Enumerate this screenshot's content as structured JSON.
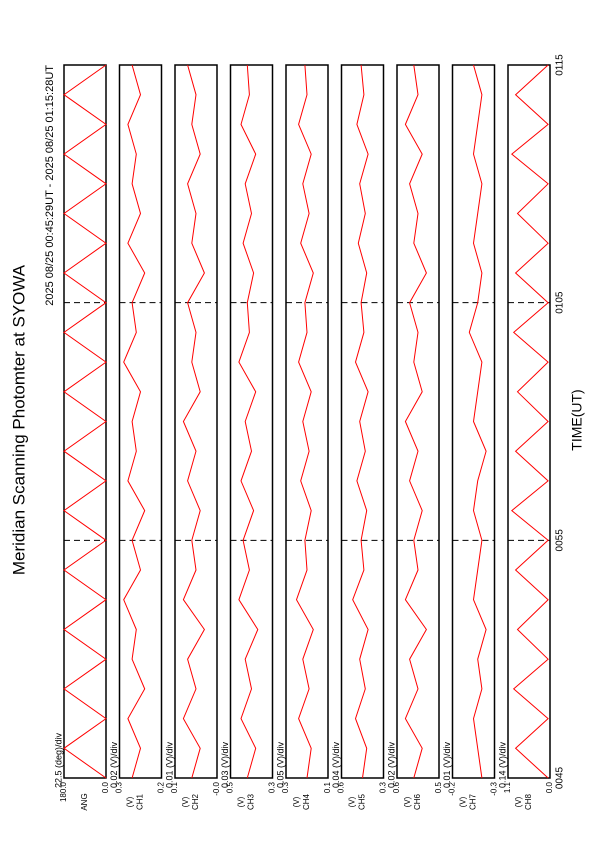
{
  "chart_data": {
    "type": "line",
    "title": "Meridian Scanning Photomter at SYOWA",
    "subtitle": "2025 08/25 00:45:29UT - 2025 08/25 01:15:28UT",
    "x_label": "TIME(UT)",
    "xlim": [
      0,
      30
    ],
    "xticks": [
      {
        "value": 0,
        "label": "0045"
      },
      {
        "value": 10,
        "label": "0055"
      },
      {
        "value": 20,
        "label": "0105"
      },
      {
        "value": 30,
        "label": "0115"
      }
    ],
    "x": [
      0,
      1.25,
      2.5,
      3.75,
      5,
      6.25,
      7.5,
      8.75,
      10,
      11.25,
      12.5,
      13.75,
      15,
      16.25,
      17.5,
      18.75,
      20,
      21.25,
      22.5,
      23.75,
      25,
      26.25,
      27.5,
      28.75,
      30
    ],
    "series": [
      {
        "name": "ANG",
        "scale": "22.5 (deg)/div",
        "color": "#ff0000",
        "ylim": [
          0,
          180
        ],
        "yticks": [
          {
            "value": 0,
            "label": "0.0"
          },
          {
            "value": 180,
            "label": "180.0"
          }
        ],
        "values": [
          0,
          180,
          0,
          180,
          0,
          180,
          0,
          180,
          0,
          180,
          0,
          180,
          0,
          180,
          0,
          180,
          0,
          180,
          0,
          180,
          0,
          180,
          0,
          180,
          0
        ]
      },
      {
        "name": "CH1",
        "unit": "(V)",
        "scale": "0.02 (V)/div",
        "color": "#ff0000",
        "ylim": [
          0.2,
          0.3
        ],
        "yticks": [
          0.2,
          0.3
        ],
        "values": [
          0.27,
          0.25,
          0.28,
          0.24,
          0.27,
          0.26,
          0.29,
          0.25,
          0.27,
          0.24,
          0.28,
          0.26,
          0.27,
          0.25,
          0.29,
          0.26,
          0.27,
          0.24,
          0.28,
          0.25,
          0.27,
          0.26,
          0.28,
          0.25,
          0.27
        ]
      },
      {
        "name": "CH2",
        "unit": "(V)",
        "scale": "0.01 (V)/div",
        "color": "#ff0000",
        "ylim": [
          0,
          0.1
        ],
        "yticks": [
          {
            "value": 0,
            "label": "-0.0"
          },
          0.1
        ],
        "values": [
          0.06,
          0.04,
          0.08,
          0.05,
          0.07,
          0.03,
          0.08,
          0.05,
          0.06,
          0.04,
          0.07,
          0.05,
          0.08,
          0.04,
          0.06,
          0.05,
          0.07,
          0.03,
          0.06,
          0.05,
          0.07,
          0.04,
          0.06,
          0.05,
          0.07
        ]
      },
      {
        "name": "CH3",
        "unit": "(V)",
        "scale": "0.03 (V)/div",
        "color": "#ff0000",
        "ylim": [
          0.3,
          0.5
        ],
        "yticks": [
          0.3,
          0.5
        ],
        "values": [
          0.42,
          0.38,
          0.45,
          0.4,
          0.43,
          0.37,
          0.46,
          0.41,
          0.44,
          0.39,
          0.45,
          0.4,
          0.43,
          0.38,
          0.46,
          0.41,
          0.42,
          0.39,
          0.44,
          0.4,
          0.43,
          0.38,
          0.45,
          0.41,
          0.42
        ]
      },
      {
        "name": "CH4",
        "unit": "(V)",
        "scale": "0.05 (V)/div",
        "color": "#ff0000",
        "ylim": [
          0.1,
          0.3
        ],
        "yticks": [
          0.1,
          0.3
        ],
        "values": [
          0.2,
          0.18,
          0.24,
          0.19,
          0.22,
          0.17,
          0.25,
          0.2,
          0.21,
          0.18,
          0.23,
          0.19,
          0.22,
          0.18,
          0.24,
          0.2,
          0.21,
          0.17,
          0.23,
          0.19,
          0.22,
          0.18,
          0.24,
          0.2,
          0.21
        ]
      },
      {
        "name": "CH5",
        "unit": "(V)",
        "scale": "0.04 (V)/div",
        "color": "#ff0000",
        "ylim": [
          0.3,
          0.6
        ],
        "yticks": [
          0.3,
          0.6
        ],
        "values": [
          0.45,
          0.42,
          0.5,
          0.43,
          0.47,
          0.41,
          0.52,
          0.44,
          0.46,
          0.42,
          0.49,
          0.43,
          0.47,
          0.41,
          0.5,
          0.44,
          0.46,
          0.42,
          0.48,
          0.43,
          0.47,
          0.41,
          0.49,
          0.44,
          0.46
        ]
      },
      {
        "name": "CH6",
        "unit": "(V)",
        "scale": "0.02 (V)/div",
        "color": "#ff0000",
        "ylim": [
          0.5,
          0.6
        ],
        "yticks": [
          0.5,
          0.6
        ],
        "values": [
          0.56,
          0.54,
          0.58,
          0.55,
          0.57,
          0.53,
          0.58,
          0.55,
          0.56,
          0.54,
          0.57,
          0.55,
          0.58,
          0.54,
          0.56,
          0.55,
          0.57,
          0.53,
          0.56,
          0.55,
          0.57,
          0.54,
          0.58,
          0.55,
          0.56
        ]
      },
      {
        "name": "CH7",
        "unit": "(V)",
        "scale": "0.01 (V)/div",
        "color": "#ff0000",
        "ylim": [
          -0.3,
          -0.2
        ],
        "yticks": [
          -0.3,
          -0.2
        ],
        "values": [
          -0.27,
          -0.26,
          -0.25,
          -0.27,
          -0.26,
          -0.28,
          -0.25,
          -0.26,
          -0.27,
          -0.25,
          -0.26,
          -0.28,
          -0.25,
          -0.26,
          -0.27,
          -0.24,
          -0.26,
          -0.27,
          -0.25,
          -0.26,
          -0.27,
          -0.25,
          -0.26,
          -0.27,
          -0.25
        ]
      },
      {
        "name": "CH8",
        "unit": "(V)",
        "scale": "0.14 (V)/div",
        "color": "#ff0000",
        "ylim": [
          0,
          1.1
        ],
        "yticks": [
          {
            "value": 0,
            "label": "0.0"
          },
          1.1
        ],
        "values": [
          0.05,
          0.9,
          0.05,
          0.95,
          0.05,
          0.85,
          0.05,
          0.9,
          0.05,
          1.0,
          0.05,
          0.9,
          0.05,
          0.85,
          0.05,
          0.95,
          0.05,
          0.9,
          0.05,
          0.85,
          0.05,
          1.0,
          0.05,
          0.9,
          0.05
        ]
      }
    ]
  }
}
